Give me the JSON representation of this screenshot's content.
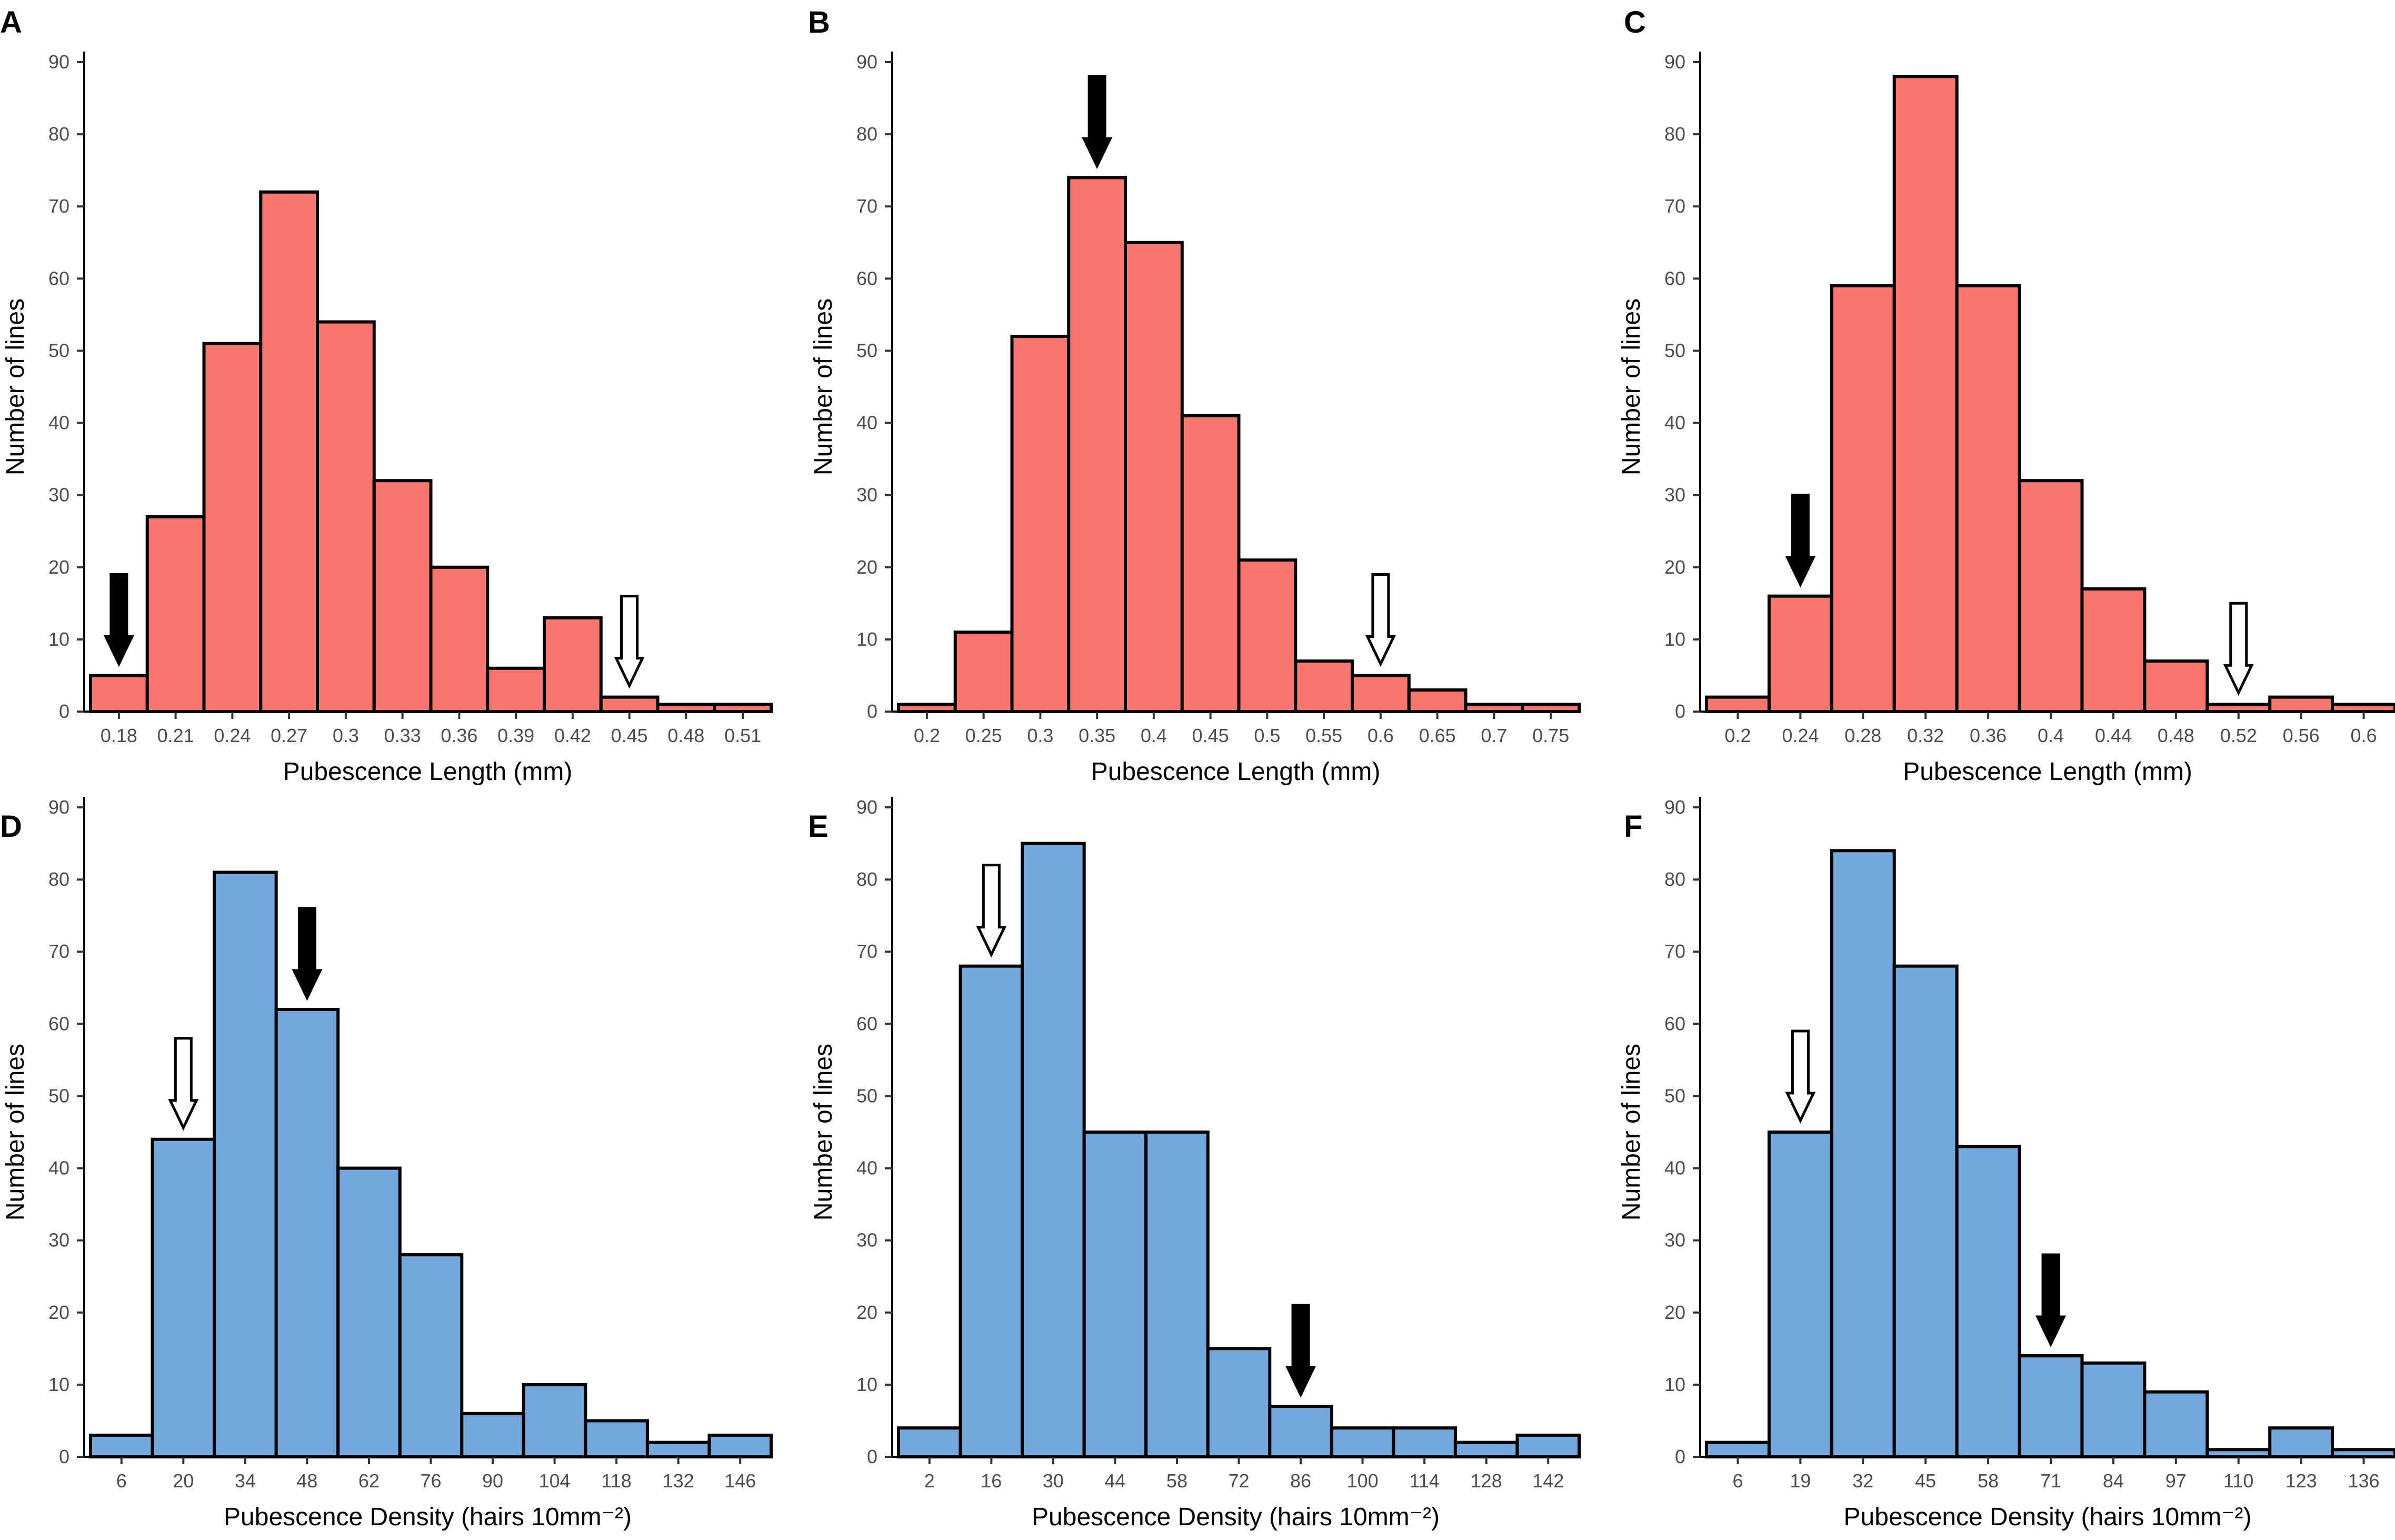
{
  "figure": {
    "ylabel": "Number of lines",
    "colors": {
      "length_bar": "#f8766d",
      "density_bar": "#72a8db",
      "edge": "#000000"
    }
  },
  "chart_data": [
    {
      "panel": "A",
      "type": "bar",
      "categories": [
        "0.18",
        "0.21",
        "0.24",
        "0.27",
        "0.3",
        "0.33",
        "0.36",
        "0.39",
        "0.42",
        "0.45",
        "0.48",
        "0.51"
      ],
      "values": [
        5,
        27,
        51,
        72,
        54,
        32,
        20,
        6,
        13,
        2,
        1,
        1
      ],
      "xlabel": "Pubescence Length (mm)",
      "ylabel": "Number of lines",
      "ylim": [
        0,
        90
      ],
      "yticks": [
        0,
        10,
        20,
        30,
        40,
        50,
        60,
        70,
        80,
        90
      ],
      "arrows": [
        {
          "kind": "filled",
          "category_index": 0,
          "value": 5
        },
        {
          "kind": "open",
          "category_index": 9,
          "value": 2
        }
      ],
      "color": "#f8766d"
    },
    {
      "panel": "B",
      "type": "bar",
      "categories": [
        "0.2",
        "0.25",
        "0.3",
        "0.35",
        "0.4",
        "0.45",
        "0.5",
        "0.55",
        "0.6",
        "0.65",
        "0.7",
        "0.75"
      ],
      "values": [
        1,
        11,
        52,
        74,
        65,
        41,
        21,
        7,
        5,
        3,
        1,
        1
      ],
      "xlabel": "Pubescence Length (mm)",
      "ylabel": "Number of lines",
      "ylim": [
        0,
        90
      ],
      "yticks": [
        0,
        10,
        20,
        30,
        40,
        50,
        60,
        70,
        80,
        90
      ],
      "arrows": [
        {
          "kind": "filled",
          "category_index": 3,
          "value": 74
        },
        {
          "kind": "open",
          "category_index": 8,
          "value": 5
        }
      ],
      "color": "#f8766d"
    },
    {
      "panel": "C",
      "type": "bar",
      "categories": [
        "0.2",
        "0.24",
        "0.28",
        "0.32",
        "0.36",
        "0.4",
        "0.44",
        "0.48",
        "0.52",
        "0.56",
        "0.6"
      ],
      "values": [
        2,
        16,
        59,
        88,
        59,
        32,
        17,
        7,
        1,
        2,
        1
      ],
      "xlabel": "Pubescence Length (mm)",
      "ylabel": "Number of lines",
      "ylim": [
        0,
        90
      ],
      "yticks": [
        0,
        10,
        20,
        30,
        40,
        50,
        60,
        70,
        80,
        90
      ],
      "arrows": [
        {
          "kind": "filled",
          "category_index": 1,
          "value": 16
        },
        {
          "kind": "open",
          "category_index": 8,
          "value": 1
        }
      ],
      "color": "#f8766d"
    },
    {
      "panel": "D",
      "type": "bar",
      "categories": [
        "6",
        "20",
        "34",
        "48",
        "62",
        "76",
        "90",
        "104",
        "118",
        "132",
        "146"
      ],
      "values": [
        3,
        44,
        81,
        62,
        40,
        28,
        6,
        10,
        5,
        2,
        3
      ],
      "xlabel": "Pubescence Density (hairs 10mm⁻²)",
      "ylabel": "Number of lines",
      "ylim": [
        0,
        90
      ],
      "yticks": [
        0,
        10,
        20,
        30,
        40,
        50,
        60,
        70,
        80,
        90
      ],
      "arrows": [
        {
          "kind": "open",
          "category_index": 1,
          "value": 44
        },
        {
          "kind": "filled",
          "category_index": 3,
          "value": 62
        }
      ],
      "color": "#72a8db"
    },
    {
      "panel": "E",
      "type": "bar",
      "categories": [
        "2",
        "16",
        "30",
        "44",
        "58",
        "72",
        "86",
        "100",
        "114",
        "128",
        "142"
      ],
      "values": [
        4,
        68,
        85,
        45,
        45,
        15,
        7,
        4,
        4,
        2,
        3
      ],
      "xlabel": "Pubescence Density (hairs 10mm⁻²)",
      "ylabel": "Number of lines",
      "ylim": [
        0,
        90
      ],
      "yticks": [
        0,
        10,
        20,
        30,
        40,
        50,
        60,
        70,
        80,
        90
      ],
      "arrows": [
        {
          "kind": "open",
          "category_index": 1,
          "value": 68
        },
        {
          "kind": "filled",
          "category_index": 6,
          "value": 7
        }
      ],
      "color": "#72a8db"
    },
    {
      "panel": "F",
      "type": "bar",
      "categories": [
        "6",
        "19",
        "32",
        "45",
        "58",
        "71",
        "84",
        "97",
        "110",
        "123",
        "136"
      ],
      "values": [
        2,
        45,
        84,
        68,
        43,
        14,
        13,
        9,
        1,
        4,
        1
      ],
      "xlabel": "Pubescence Density (hairs 10mm⁻²)",
      "ylabel": "Number of lines",
      "ylim": [
        0,
        90
      ],
      "yticks": [
        0,
        10,
        20,
        30,
        40,
        50,
        60,
        70,
        80,
        90
      ],
      "arrows": [
        {
          "kind": "open",
          "category_index": 1,
          "value": 45
        },
        {
          "kind": "filled",
          "category_index": 5,
          "value": 14
        }
      ],
      "color": "#72a8db"
    }
  ]
}
